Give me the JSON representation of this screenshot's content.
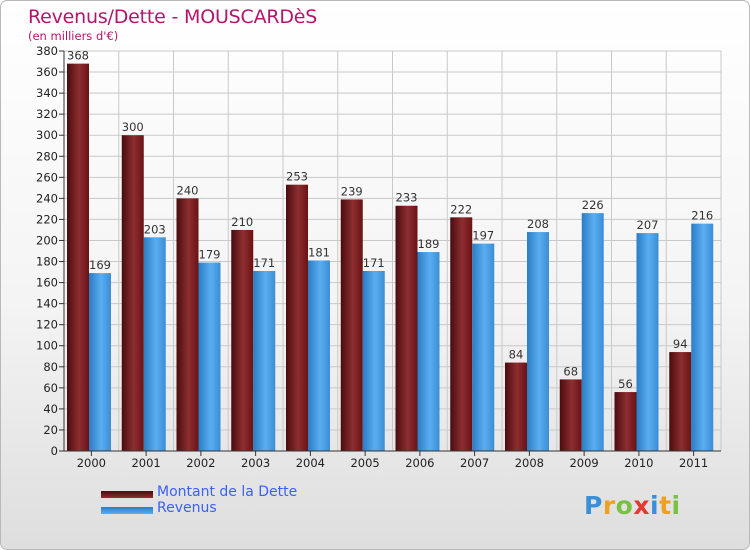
{
  "header": {
    "title": "Revenus/Dette - MOUSCARDèS",
    "subtitle": "(en milliers d'€)"
  },
  "chart_data": {
    "type": "bar",
    "categories": [
      "2000",
      "2001",
      "2002",
      "2003",
      "2004",
      "2005",
      "2006",
      "2007",
      "2008",
      "2009",
      "2010",
      "2011"
    ],
    "series": [
      {
        "name": "Montant de la Dette",
        "color": "#7a1a1d",
        "values": [
          368,
          300,
          240,
          210,
          253,
          239,
          233,
          222,
          84,
          68,
          56,
          94
        ]
      },
      {
        "name": "Revenus",
        "color": "#3d95dc",
        "values": [
          169,
          203,
          179,
          171,
          181,
          171,
          189,
          197,
          208,
          226,
          207,
          216
        ]
      }
    ],
    "ylim": [
      0,
      380
    ],
    "ytick_step": 20,
    "grid": true,
    "legend_position": "bottom-left",
    "xlabel": "",
    "ylabel": ""
  },
  "logo": {
    "letters": [
      "P",
      "r",
      "o",
      "x",
      "i",
      "t",
      "i"
    ],
    "colors": [
      "#3a8fd8",
      "#f0a020",
      "#7ac143",
      "#e23a2e",
      "#3a8fd8",
      "#f0a020",
      "#7ac143"
    ]
  }
}
